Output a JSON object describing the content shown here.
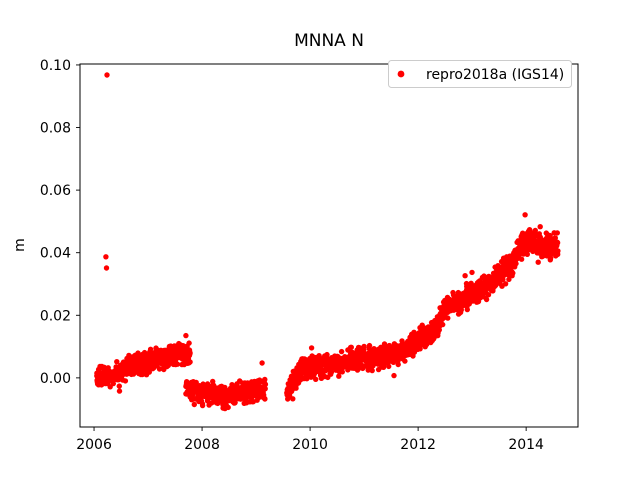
{
  "figure": {
    "background": "#ffffff"
  },
  "chart_data": {
    "type": "scatter",
    "title": "MNNA N",
    "xlabel": "",
    "ylabel": "m",
    "grid": false,
    "xlim": [
      2005.74,
      2014.96
    ],
    "ylim": [
      -0.0157,
      0.1003
    ],
    "xticks": {
      "values": [
        2006,
        2008,
        2010,
        2012,
        2014
      ],
      "labels": [
        "2006",
        "2008",
        "2010",
        "2012",
        "2014"
      ]
    },
    "yticks": {
      "values": [
        0.0,
        0.02,
        0.04,
        0.06,
        0.08,
        0.1
      ],
      "labels": [
        "0.00",
        "0.02",
        "0.04",
        "0.06",
        "0.08",
        "0.10"
      ]
    },
    "legend": {
      "position": "upper right",
      "entries": [
        {
          "label": "repro2018a (IGS14)",
          "marker": "dot",
          "color": "#ff0000"
        }
      ]
    },
    "series": [
      {
        "name": "repro2018a (IGS14)",
        "color": "#ff0000",
        "unit": "m",
        "segments": [
          {
            "label": "2006.1-2007.8 cluster near zero with slight rise",
            "x_start": 2006.05,
            "x_end": 2007.78,
            "n": 480,
            "scatter_std": 0.0016,
            "trend": [
              [
                2006.05,
                0.0
              ],
              [
                2006.4,
                0.001
              ],
              [
                2006.65,
                0.0035
              ],
              [
                2006.9,
                0.0045
              ],
              [
                2007.05,
                0.006
              ],
              [
                2007.3,
                0.0065
              ],
              [
                2007.5,
                0.0075
              ],
              [
                2007.65,
                0.007
              ],
              [
                2007.78,
                0.0078
              ]
            ]
          },
          {
            "label": "2007.7-2009.2 cluster offset down to about -0.005",
            "x_start": 2007.7,
            "x_end": 2009.17,
            "n": 400,
            "scatter_std": 0.0017,
            "trend": [
              [
                2007.7,
                -0.0025
              ],
              [
                2007.9,
                -0.005
              ],
              [
                2008.15,
                -0.0045
              ],
              [
                2008.4,
                -0.006
              ],
              [
                2008.7,
                -0.005
              ],
              [
                2008.95,
                -0.0045
              ],
              [
                2009.17,
                -0.003
              ]
            ]
          },
          {
            "label": "2009.6-2014.6 steady rise to about 0.042",
            "x_start": 2009.57,
            "x_end": 2014.59,
            "n": 1450,
            "scatter_std": 0.0017,
            "trend": [
              [
                2009.57,
                -0.0055
              ],
              [
                2009.68,
                -0.0015
              ],
              [
                2009.85,
                0.003
              ],
              [
                2010.2,
                0.004
              ],
              [
                2010.6,
                0.005
              ],
              [
                2011.0,
                0.0065
              ],
              [
                2011.45,
                0.007
              ],
              [
                2011.8,
                0.0095
              ],
              [
                2012.1,
                0.013
              ],
              [
                2012.3,
                0.015
              ],
              [
                2012.5,
                0.0225
              ],
              [
                2012.75,
                0.024
              ],
              [
                2013.1,
                0.028
              ],
              [
                2013.4,
                0.031
              ],
              [
                2013.7,
                0.036
              ],
              [
                2013.95,
                0.043
              ],
              [
                2014.15,
                0.0435
              ],
              [
                2014.3,
                0.0415
              ],
              [
                2014.45,
                0.0425
              ],
              [
                2014.59,
                0.042
              ]
            ]
          }
        ],
        "outlier_points": [
          [
            2006.24,
            0.0968
          ],
          [
            2006.22,
            0.0387
          ],
          [
            2006.23,
            0.0351
          ],
          [
            2007.7,
            0.0135
          ],
          [
            2013.98,
            0.0521
          ],
          [
            2014.26,
            0.0483
          ]
        ]
      }
    ]
  }
}
